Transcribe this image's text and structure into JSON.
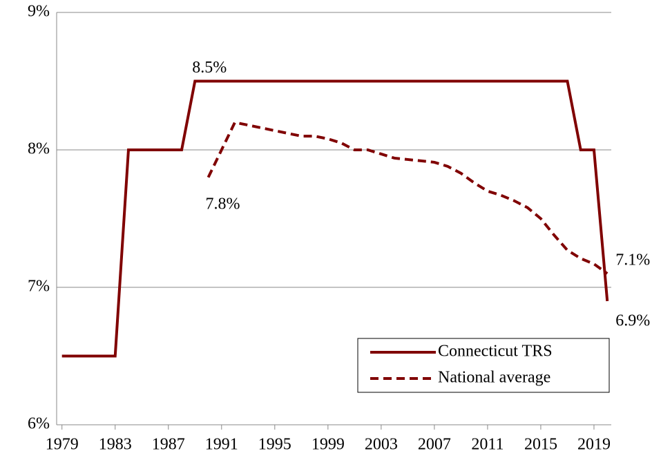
{
  "chart_data": {
    "type": "line",
    "x": [
      1979,
      1980,
      1981,
      1982,
      1983,
      1984,
      1985,
      1986,
      1987,
      1988,
      1989,
      1990,
      1991,
      1992,
      1993,
      1994,
      1995,
      1996,
      1997,
      1998,
      1999,
      2000,
      2001,
      2002,
      2003,
      2004,
      2005,
      2006,
      2007,
      2008,
      2009,
      2010,
      2011,
      2012,
      2013,
      2014,
      2015,
      2016,
      2017,
      2018,
      2019,
      2020
    ],
    "series": [
      {
        "name": "Connecticut TRS",
        "color": "#800000",
        "dash": false,
        "values": [
          6.5,
          6.5,
          6.5,
          6.5,
          6.5,
          8.0,
          8.0,
          8.0,
          8.0,
          8.0,
          8.5,
          8.5,
          8.5,
          8.5,
          8.5,
          8.5,
          8.5,
          8.5,
          8.5,
          8.5,
          8.5,
          8.5,
          8.5,
          8.5,
          8.5,
          8.5,
          8.5,
          8.5,
          8.5,
          8.5,
          8.5,
          8.5,
          8.5,
          8.5,
          8.5,
          8.5,
          8.5,
          8.5,
          8.5,
          8.0,
          8.0,
          6.9
        ],
        "value_labels": [
          null,
          null,
          null,
          null,
          null,
          null,
          null,
          null,
          null,
          null,
          "8.5%",
          null,
          null,
          null,
          null,
          null,
          null,
          null,
          null,
          null,
          null,
          null,
          null,
          null,
          null,
          null,
          null,
          null,
          null,
          null,
          null,
          null,
          null,
          null,
          null,
          null,
          null,
          null,
          null,
          null,
          null,
          "6.9%"
        ]
      },
      {
        "name": "National average",
        "color": "#800000",
        "dash": true,
        "values": [
          null,
          null,
          null,
          null,
          null,
          null,
          null,
          null,
          null,
          null,
          null,
          7.8,
          8.0,
          8.2,
          8.18,
          8.16,
          8.14,
          8.12,
          8.1,
          8.1,
          8.08,
          8.05,
          8.0,
          8.0,
          7.97,
          7.94,
          7.93,
          7.92,
          7.91,
          7.88,
          7.83,
          7.76,
          7.7,
          7.67,
          7.63,
          7.58,
          7.5,
          7.38,
          7.27,
          7.21,
          7.17,
          7.1
        ],
        "value_labels": [
          null,
          null,
          null,
          null,
          null,
          null,
          null,
          null,
          null,
          null,
          null,
          "7.8%",
          null,
          null,
          null,
          null,
          null,
          null,
          null,
          null,
          null,
          null,
          null,
          null,
          null,
          null,
          null,
          null,
          null,
          null,
          null,
          null,
          null,
          null,
          null,
          null,
          null,
          null,
          null,
          null,
          null,
          "7.1%"
        ]
      }
    ],
    "xlim": [
      1978.6,
      2020.3
    ],
    "xticks": [
      1979,
      1983,
      1987,
      1991,
      1995,
      1999,
      2003,
      2007,
      2011,
      2015,
      2019
    ],
    "ylim": [
      6,
      9
    ],
    "yticks": [
      {
        "value": 6,
        "label": "6%"
      },
      {
        "value": 7,
        "label": "7%"
      },
      {
        "value": 8,
        "label": "8%"
      },
      {
        "value": 9,
        "label": "9%"
      }
    ],
    "grid": true,
    "legend": "lower-right"
  }
}
